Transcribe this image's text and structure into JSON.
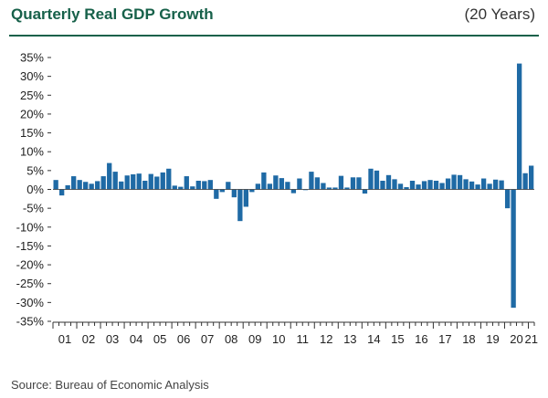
{
  "header": {
    "title": "Quarterly Real GDP Growth",
    "subtitle": "(20 Years)"
  },
  "footer": {
    "source": "Source: Bureau of Economic Analysis"
  },
  "colors": {
    "bar": "#1f6aa5",
    "title": "#17614a",
    "rule": "#17614a"
  },
  "chart_data": {
    "type": "bar",
    "title": "Quarterly Real GDP Growth",
    "subtitle": "(20 Years)",
    "xlabel": "",
    "ylabel": "",
    "unit": "%",
    "ylim": [
      -35,
      35
    ],
    "yticks": [
      35,
      30,
      25,
      20,
      15,
      10,
      5,
      0,
      -5,
      -10,
      -15,
      -20,
      -25,
      -30,
      -35
    ],
    "ytick_labels": [
      "35%",
      "30%",
      "25%",
      "20%",
      "15%",
      "10%",
      "5%",
      "0%",
      "-5%",
      "-10%",
      "-15%",
      "-20%",
      "-25%",
      "-30%",
      "-35%"
    ],
    "year_labels": [
      "01",
      "02",
      "03",
      "04",
      "05",
      "06",
      "07",
      "08",
      "09",
      "10",
      "11",
      "12",
      "13",
      "14",
      "15",
      "16",
      "17",
      "18",
      "19",
      "20",
      "21"
    ],
    "quarters_per_year": 4,
    "values": [
      2.5,
      -1.6,
      1.1,
      3.5,
      2.5,
      2.0,
      1.5,
      2.2,
      3.5,
      7.0,
      4.7,
      2.1,
      3.7,
      4.0,
      4.2,
      2.3,
      4.1,
      3.4,
      4.5,
      5.5,
      1.0,
      0.7,
      3.5,
      0.8,
      2.3,
      2.2,
      2.5,
      -2.5,
      -0.7,
      2.0,
      -2.1,
      -8.4,
      -4.6,
      -0.7,
      1.5,
      4.5,
      1.5,
      3.7,
      3.0,
      2.0,
      -1.0,
      2.9,
      -0.1,
      4.7,
      3.2,
      1.7,
      0.5,
      0.5,
      3.6,
      0.5,
      3.2,
      3.2,
      -1.1,
      5.5,
      5.0,
      2.3,
      3.8,
      2.7,
      1.5,
      0.6,
      2.3,
      1.3,
      2.2,
      2.5,
      2.3,
      1.7,
      2.9,
      3.9,
      3.8,
      2.7,
      2.1,
      1.3,
      2.9,
      1.5,
      2.6,
      2.4,
      -5.0,
      -31.4,
      33.4,
      4.3,
      6.3
    ]
  }
}
